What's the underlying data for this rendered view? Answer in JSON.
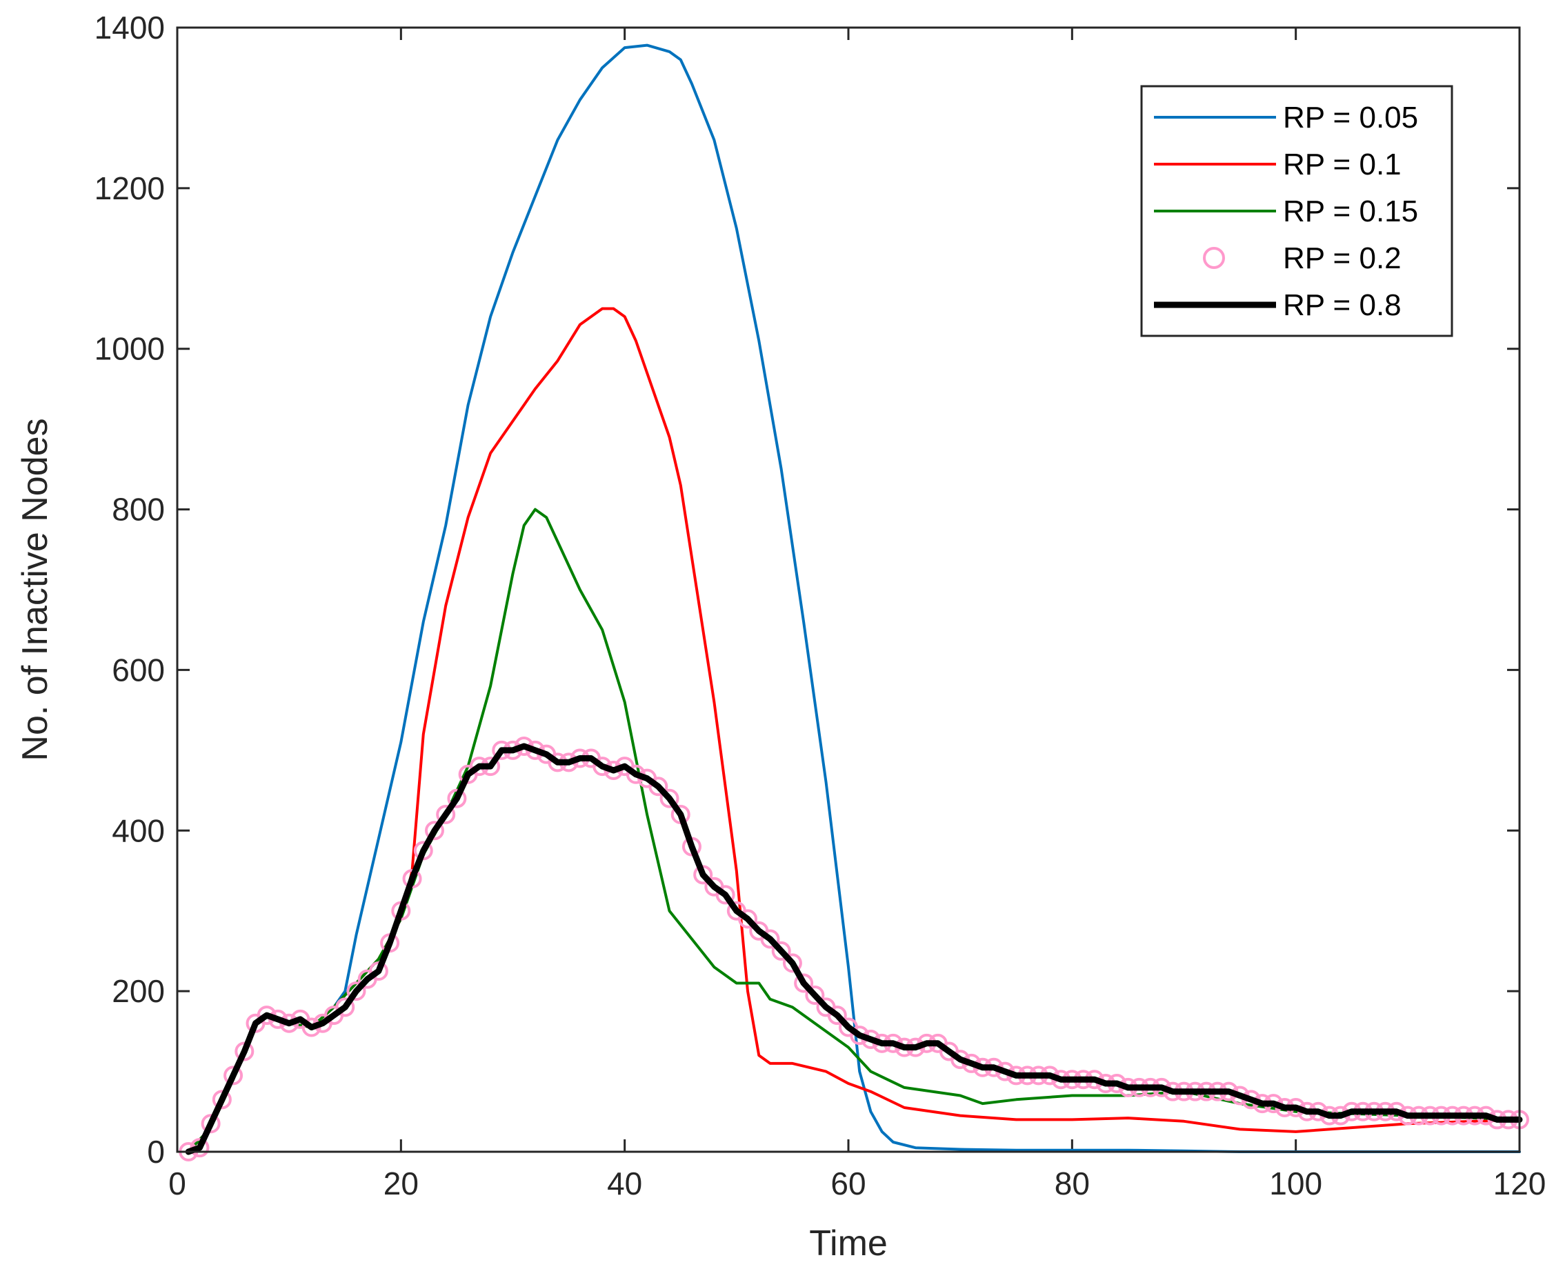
{
  "chart_data": {
    "type": "line",
    "title": "",
    "xlabel": "Time",
    "ylabel": "No. of Inactive Nodes",
    "xlim": [
      0,
      120
    ],
    "ylim": [
      0,
      1400
    ],
    "xticks": [
      0,
      20,
      40,
      60,
      80,
      100,
      120
    ],
    "yticks": [
      0,
      200,
      400,
      600,
      800,
      1000,
      1200,
      1400
    ],
    "grid": false,
    "legend_position": "top-right",
    "series": [
      {
        "name": "RP = 0.05",
        "style": "line",
        "color": "#0072BD",
        "x": [
          1,
          3,
          5,
          7,
          8,
          10,
          12,
          14,
          15,
          16,
          18,
          20,
          22,
          24,
          26,
          28,
          30,
          32,
          34,
          36,
          38,
          40,
          42,
          44,
          45,
          46,
          48,
          50,
          52,
          54,
          56,
          58,
          60,
          61,
          62,
          63,
          64,
          66,
          70,
          75,
          80,
          85,
          90,
          95,
          100,
          110,
          120
        ],
        "y": [
          0,
          30,
          90,
          160,
          170,
          160,
          155,
          180,
          200,
          270,
          390,
          510,
          660,
          780,
          930,
          1040,
          1120,
          1190,
          1260,
          1310,
          1350,
          1375,
          1378,
          1370,
          1360,
          1330,
          1260,
          1150,
          1010,
          850,
          660,
          460,
          230,
          100,
          50,
          25,
          12,
          5,
          3,
          2,
          2,
          2,
          1,
          0,
          0,
          0,
          0
        ]
      },
      {
        "name": "RP = 0.1",
        "style": "line",
        "color": "#FF0000",
        "x": [
          1,
          3,
          5,
          7,
          8,
          10,
          12,
          14,
          16,
          18,
          20,
          21,
          22,
          24,
          26,
          28,
          30,
          32,
          34,
          36,
          38,
          39,
          40,
          41,
          42,
          44,
          45,
          46,
          48,
          50,
          51,
          52,
          53,
          55,
          58,
          60,
          62,
          65,
          70,
          75,
          80,
          85,
          90,
          95,
          100,
          110,
          120
        ],
        "y": [
          0,
          30,
          90,
          160,
          170,
          160,
          155,
          180,
          210,
          240,
          290,
          350,
          520,
          680,
          790,
          870,
          910,
          950,
          985,
          1030,
          1050,
          1050,
          1040,
          1010,
          970,
          890,
          830,
          740,
          560,
          350,
          200,
          120,
          110,
          110,
          100,
          85,
          75,
          55,
          45,
          40,
          40,
          42,
          38,
          28,
          25,
          35,
          40
        ],
        "note": "overlaps RP = 0.8 until t = 20"
      },
      {
        "name": "RP = 0.15",
        "style": "line",
        "color": "#008000",
        "x": [
          1,
          3,
          5,
          7,
          8,
          10,
          12,
          14,
          16,
          18,
          20,
          22,
          24,
          25,
          26,
          28,
          30,
          31,
          32,
          33,
          34,
          36,
          38,
          40,
          42,
          44,
          46,
          48,
          50,
          52,
          53,
          55,
          58,
          60,
          62,
          65,
          70,
          72,
          75,
          80,
          85,
          90,
          95,
          100,
          110,
          120
        ],
        "y": [
          0,
          30,
          90,
          160,
          170,
          160,
          155,
          180,
          210,
          240,
          290,
          370,
          420,
          450,
          480,
          580,
          720,
          780,
          800,
          790,
          760,
          700,
          650,
          560,
          420,
          300,
          265,
          230,
          210,
          210,
          190,
          180,
          150,
          130,
          100,
          80,
          70,
          60,
          65,
          70,
          70,
          75,
          60,
          50,
          45,
          40
        ],
        "note": "overlaps RP = 0.8 until t = 25"
      },
      {
        "name": "RP = 0.2",
        "style": "markers",
        "color": "#FF99CC",
        "x": [
          1,
          2,
          3,
          4,
          5,
          6,
          7,
          8,
          9,
          10,
          11,
          12,
          13,
          14,
          15,
          16,
          17,
          18,
          19,
          20,
          21,
          22,
          23,
          24,
          25,
          26,
          27,
          28,
          29,
          30,
          31,
          32,
          33,
          34,
          35,
          36,
          37,
          38,
          39,
          40,
          41,
          42,
          43,
          44,
          45,
          46,
          47,
          48,
          49,
          50,
          51,
          52,
          53,
          54,
          55,
          56,
          57,
          58,
          59,
          60,
          61,
          62,
          63,
          64,
          65,
          66,
          67,
          68,
          69,
          70,
          71,
          72,
          73,
          74,
          75,
          76,
          77,
          78,
          79,
          80,
          81,
          82,
          83,
          84,
          85,
          86,
          87,
          88,
          89,
          90,
          91,
          92,
          93,
          94,
          95,
          96,
          97,
          98,
          99,
          100,
          101,
          102,
          103,
          104,
          105,
          106,
          107,
          108,
          109,
          110,
          111,
          112,
          113,
          114,
          115,
          116,
          117,
          118,
          119,
          120
        ],
        "y": [
          0,
          5,
          35,
          65,
          95,
          125,
          160,
          170,
          165,
          160,
          165,
          155,
          160,
          170,
          180,
          200,
          215,
          225,
          260,
          300,
          340,
          375,
          400,
          420,
          440,
          470,
          480,
          480,
          500,
          500,
          505,
          500,
          495,
          485,
          485,
          490,
          490,
          480,
          475,
          480,
          470,
          465,
          455,
          440,
          420,
          380,
          345,
          330,
          320,
          300,
          290,
          275,
          265,
          250,
          235,
          210,
          195,
          180,
          170,
          155,
          145,
          140,
          135,
          135,
          130,
          130,
          135,
          135,
          125,
          115,
          110,
          105,
          105,
          100,
          95,
          95,
          95,
          95,
          90,
          90,
          90,
          90,
          85,
          85,
          80,
          80,
          80,
          80,
          75,
          75,
          75,
          75,
          75,
          75,
          70,
          65,
          60,
          60,
          55,
          55,
          50,
          50,
          45,
          45,
          50,
          50,
          50,
          50,
          50,
          45,
          45,
          45,
          45,
          45,
          45,
          45,
          45,
          40,
          40,
          40
        ]
      },
      {
        "name": "RP = 0.8",
        "style": "thick-line",
        "color": "#000000",
        "x": [
          1,
          2,
          3,
          4,
          5,
          6,
          7,
          8,
          9,
          10,
          11,
          12,
          13,
          14,
          15,
          16,
          17,
          18,
          19,
          20,
          21,
          22,
          23,
          24,
          25,
          26,
          27,
          28,
          29,
          30,
          31,
          32,
          33,
          34,
          35,
          36,
          37,
          38,
          39,
          40,
          41,
          42,
          43,
          44,
          45,
          46,
          47,
          48,
          49,
          50,
          51,
          52,
          53,
          54,
          55,
          56,
          57,
          58,
          59,
          60,
          61,
          62,
          63,
          64,
          65,
          66,
          67,
          68,
          69,
          70,
          71,
          72,
          73,
          74,
          75,
          76,
          77,
          78,
          79,
          80,
          81,
          82,
          83,
          84,
          85,
          86,
          87,
          88,
          89,
          90,
          91,
          92,
          93,
          94,
          95,
          96,
          97,
          98,
          99,
          100,
          101,
          102,
          103,
          104,
          105,
          106,
          107,
          108,
          109,
          110,
          111,
          112,
          113,
          114,
          115,
          116,
          117,
          118,
          119,
          120
        ],
        "y": [
          0,
          5,
          35,
          65,
          95,
          125,
          160,
          170,
          165,
          160,
          165,
          155,
          160,
          170,
          180,
          200,
          215,
          225,
          260,
          300,
          340,
          375,
          400,
          420,
          440,
          470,
          480,
          480,
          500,
          500,
          505,
          500,
          495,
          485,
          485,
          490,
          490,
          480,
          475,
          480,
          470,
          465,
          455,
          440,
          420,
          380,
          345,
          330,
          320,
          300,
          290,
          275,
          265,
          250,
          235,
          210,
          195,
          180,
          170,
          155,
          145,
          140,
          135,
          135,
          130,
          130,
          135,
          135,
          125,
          115,
          110,
          105,
          105,
          100,
          95,
          95,
          95,
          95,
          90,
          90,
          90,
          90,
          85,
          85,
          80,
          80,
          80,
          80,
          75,
          75,
          75,
          75,
          75,
          75,
          70,
          65,
          60,
          60,
          55,
          55,
          50,
          50,
          45,
          45,
          50,
          50,
          50,
          50,
          50,
          45,
          45,
          45,
          45,
          45,
          45,
          45,
          45,
          40,
          40,
          40
        ]
      }
    ]
  }
}
